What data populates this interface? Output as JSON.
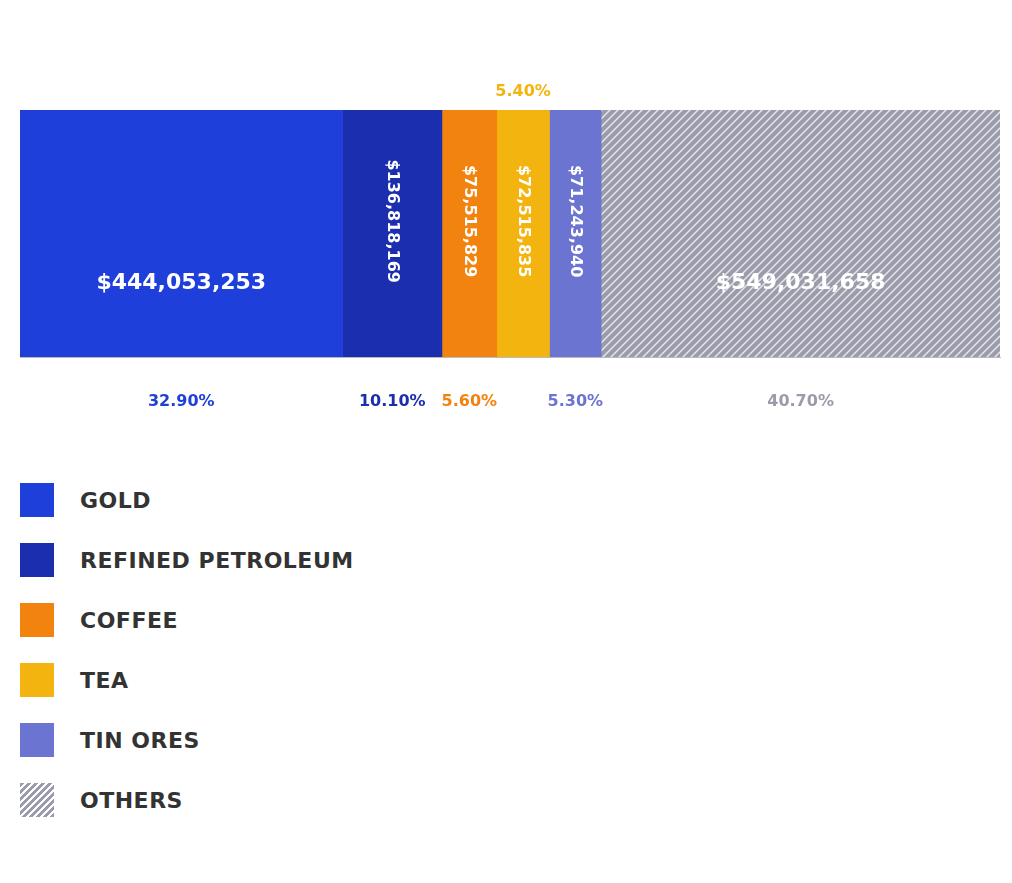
{
  "chart_data": {
    "type": "bar",
    "orientation": "horizontal",
    "stacked": true,
    "data_labels": true,
    "tick_labels": false,
    "grid": false,
    "legend": "bottom",
    "categories": [
      null
    ],
    "xlim": [
      0,
      1349178684
    ],
    "series": [
      {
        "name": "GOLD",
        "color": "#1f3fdb",
        "values": [
          444053253
        ],
        "value_labels": [
          "$444,053,253"
        ],
        "shares": [
          32.9
        ],
        "share_labels": [
          "32.90%"
        ]
      },
      {
        "name": "REFINED PETROLEUM",
        "color": "#1b2fae",
        "values": [
          136818169
        ],
        "value_labels": [
          "$136,818,169"
        ],
        "shares": [
          10.1
        ],
        "share_labels": [
          "10.10%"
        ]
      },
      {
        "name": "COFFEE",
        "color": "#f2830f",
        "values": [
          75515829
        ],
        "value_labels": [
          "$75,515,829"
        ],
        "shares": [
          5.6
        ],
        "share_labels": [
          "5.60%"
        ]
      },
      {
        "name": "TEA",
        "color": "#f4b40f",
        "values": [
          72515835
        ],
        "value_labels": [
          "$72,515,835"
        ],
        "shares": [
          5.4
        ],
        "share_labels": [
          "5.40%"
        ]
      },
      {
        "name": "TIN ORES",
        "color": "#6b74d1",
        "values": [
          71243940
        ],
        "value_labels": [
          "$71,243,940"
        ],
        "shares": [
          5.3
        ],
        "share_labels": [
          "5.30%"
        ]
      },
      {
        "name": "OTHERS",
        "color": "#9b9cab",
        "values": [
          549031658
        ],
        "value_labels": [
          "$549,031,658"
        ],
        "shares": [
          40.7
        ],
        "share_labels": [
          "40.70%"
        ]
      }
    ]
  }
}
